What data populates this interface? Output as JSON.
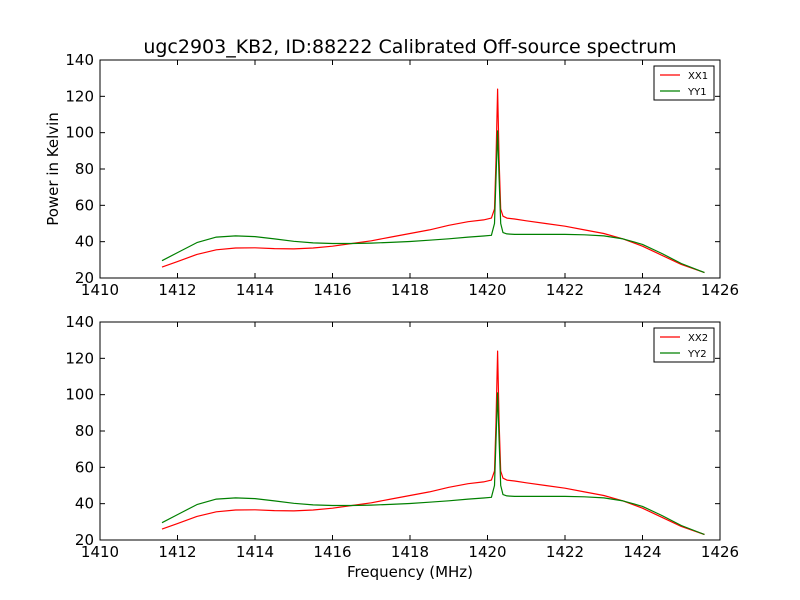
{
  "chart_data": {
    "type": "line",
    "title": "ugc2903_KB2, ID:88222 Calibrated Off-source spectrum",
    "ylabel": "Power in Kelvin",
    "xlabel": "Frequency (MHz)",
    "xlim": [
      1410,
      1426
    ],
    "ylim": [
      20,
      140
    ],
    "xticks": [
      1410,
      1412,
      1414,
      1416,
      1418,
      1420,
      1422,
      1424,
      1426
    ],
    "yticks": [
      20,
      40,
      60,
      80,
      100,
      120,
      140
    ],
    "legend_position": "top-right",
    "subplots": [
      {
        "series": [
          {
            "name": "XX1",
            "color": "#ff0000",
            "x": [
              1411.6,
              1412.0,
              1412.5,
              1413.0,
              1413.5,
              1414.0,
              1414.5,
              1415.0,
              1415.5,
              1416.0,
              1416.5,
              1417.0,
              1417.5,
              1418.0,
              1418.5,
              1419.0,
              1419.5,
              1419.9,
              1420.1,
              1420.18,
              1420.22,
              1420.26,
              1420.3,
              1420.34,
              1420.4,
              1420.5,
              1420.7,
              1421.0,
              1421.5,
              1422.0,
              1422.5,
              1423.0,
              1423.5,
              1424.0,
              1424.5,
              1425.0,
              1425.6
            ],
            "y": [
              26,
              29,
              33,
              35.5,
              36.5,
              36.6,
              36.2,
              36,
              36.5,
              37.5,
              39,
              40.5,
              42.5,
              44.5,
              46.5,
              49,
              51,
              52,
              53,
              58,
              85,
              124,
              85,
              58,
              54,
              53,
              52.5,
              51.5,
              50,
              48.5,
              46.5,
              44.5,
              41.5,
              37.5,
              32.5,
              27.5,
              23
            ]
          },
          {
            "name": "YY1",
            "color": "#008000",
            "x": [
              1411.6,
              1412.0,
              1412.5,
              1413.0,
              1413.5,
              1414.0,
              1414.5,
              1415.0,
              1415.5,
              1416.0,
              1416.5,
              1417.0,
              1417.5,
              1418.0,
              1418.5,
              1419.0,
              1419.5,
              1419.9,
              1420.1,
              1420.18,
              1420.22,
              1420.26,
              1420.3,
              1420.34,
              1420.4,
              1420.5,
              1420.7,
              1421.0,
              1421.5,
              1422.0,
              1422.5,
              1423.0,
              1423.5,
              1424.0,
              1424.5,
              1425.0,
              1425.6
            ],
            "y": [
              29.5,
              34,
              39.5,
              42.5,
              43.2,
              42.8,
              41.5,
              40.2,
              39.3,
              39,
              39,
              39.2,
              39.6,
              40.1,
              40.8,
              41.6,
              42.5,
              43.1,
              43.5,
              50,
              75,
              101,
              75,
              50,
              45,
              44.3,
              44,
              44,
              44,
              44,
              43.8,
              43.2,
              41.5,
              38.5,
              33.5,
              28,
              23
            ]
          }
        ]
      },
      {
        "xlabel": "Frequency (MHz)",
        "series": [
          {
            "name": "XX2",
            "color": "#ff0000",
            "x": [
              1411.6,
              1412.0,
              1412.5,
              1413.0,
              1413.5,
              1414.0,
              1414.5,
              1415.0,
              1415.5,
              1416.0,
              1416.5,
              1417.0,
              1417.5,
              1418.0,
              1418.5,
              1419.0,
              1419.5,
              1419.9,
              1420.1,
              1420.18,
              1420.22,
              1420.26,
              1420.3,
              1420.34,
              1420.4,
              1420.5,
              1420.7,
              1421.0,
              1421.5,
              1422.0,
              1422.5,
              1423.0,
              1423.5,
              1424.0,
              1424.5,
              1425.0,
              1425.6
            ],
            "y": [
              26,
              29,
              33,
              35.5,
              36.5,
              36.6,
              36.2,
              36,
              36.5,
              37.5,
              39,
              40.5,
              42.5,
              44.5,
              46.5,
              49,
              51,
              52,
              53,
              58,
              85,
              124,
              85,
              58,
              54,
              53,
              52.5,
              51.5,
              50,
              48.5,
              46.5,
              44.5,
              41.5,
              37.5,
              32.5,
              27.5,
              23
            ]
          },
          {
            "name": "YY2",
            "color": "#008000",
            "x": [
              1411.6,
              1412.0,
              1412.5,
              1413.0,
              1413.5,
              1414.0,
              1414.5,
              1415.0,
              1415.5,
              1416.0,
              1416.5,
              1417.0,
              1417.5,
              1418.0,
              1418.5,
              1419.0,
              1419.5,
              1419.9,
              1420.1,
              1420.18,
              1420.22,
              1420.26,
              1420.3,
              1420.34,
              1420.4,
              1420.5,
              1420.7,
              1421.0,
              1421.5,
              1422.0,
              1422.5,
              1423.0,
              1423.5,
              1424.0,
              1424.5,
              1425.0,
              1425.6
            ],
            "y": [
              29.5,
              34,
              39.5,
              42.5,
              43.2,
              42.8,
              41.5,
              40.2,
              39.3,
              39,
              39,
              39.2,
              39.6,
              40.1,
              40.8,
              41.6,
              42.5,
              43.1,
              43.5,
              50,
              75,
              101,
              75,
              50,
              45,
              44.3,
              44,
              44,
              44,
              44,
              43.8,
              43.2,
              41.5,
              38.5,
              33.5,
              28,
              23
            ]
          }
        ]
      }
    ]
  }
}
